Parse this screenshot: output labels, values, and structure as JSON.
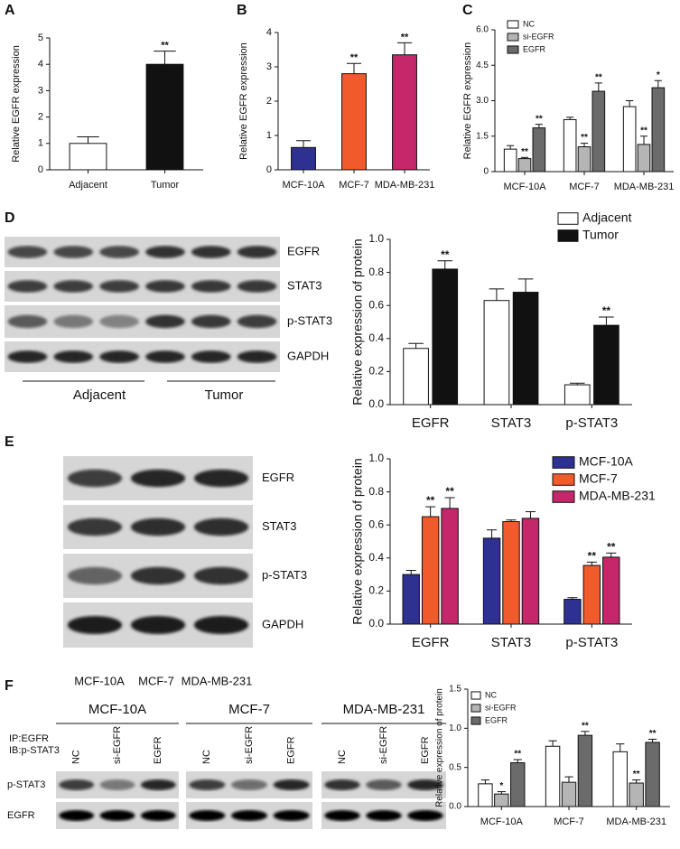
{
  "chart_data": [
    {
      "type": "bar",
      "label": "A",
      "ylabel": "Relative EGFR expression",
      "categories": [
        "Adjacent",
        "Tumor"
      ],
      "values": [
        1.0,
        4.0
      ],
      "errors": [
        0.25,
        0.5
      ],
      "colors": [
        "#ffffff",
        "#111111"
      ],
      "annotations": [
        null,
        "**"
      ],
      "ylim": [
        0,
        5
      ],
      "yticks": [
        0,
        1,
        2,
        3,
        4,
        5
      ]
    },
    {
      "type": "bar",
      "label": "B",
      "ylabel": "Relative EGFR expression",
      "categories": [
        "MCF-10A",
        "MCF-7",
        "MDA-MB-231"
      ],
      "values": [
        0.65,
        2.8,
        3.35
      ],
      "errors": [
        0.2,
        0.3,
        0.35
      ],
      "colors": [
        "#2e3192",
        "#f15a2b",
        "#c4276a"
      ],
      "annotations": [
        null,
        "**",
        "**"
      ],
      "ylim": [
        0,
        4
      ],
      "yticks": [
        0,
        1,
        2,
        3,
        4
      ]
    },
    {
      "type": "bar",
      "label": "C",
      "ylabel": "Relative EGFR expression",
      "categories": [
        "MCF-10A",
        "MCF-7",
        "MDA-MB-231"
      ],
      "series": [
        {
          "name": "NC",
          "color": "#ffffff",
          "values": [
            0.95,
            2.2,
            2.75
          ],
          "errors": [
            0.15,
            0.1,
            0.25
          ],
          "annotations": [
            null,
            null,
            null
          ]
        },
        {
          "name": "si-EGFR",
          "color": "#b5b5b5",
          "values": [
            0.55,
            1.05,
            1.15
          ],
          "errors": [
            0.05,
            0.15,
            0.35
          ],
          "annotations": [
            "**",
            "**",
            "**"
          ]
        },
        {
          "name": "EGFR",
          "color": "#6b6b6b",
          "values": [
            1.85,
            3.4,
            3.55
          ],
          "errors": [
            0.15,
            0.35,
            0.3
          ],
          "annotations": [
            "**",
            "**",
            "*"
          ]
        }
      ],
      "ylim": [
        0,
        6
      ],
      "yticks": [
        0,
        1.5,
        {
          "value": 3,
          "label": "3.0"
        },
        4.5,
        {
          "value": 6,
          "label": "6.0"
        }
      ]
    },
    {
      "type": "bar",
      "label": "D",
      "ylabel": "Relative expression of protein",
      "categories": [
        "EGFR",
        "STAT3",
        "p-STAT3"
      ],
      "series": [
        {
          "name": "Adjacent",
          "color": "#ffffff",
          "values": [
            0.34,
            0.63,
            0.12
          ],
          "errors": [
            0.03,
            0.07,
            0.01
          ],
          "annotations": [
            null,
            null,
            null
          ]
        },
        {
          "name": "Tumor",
          "color": "#111111",
          "values": [
            0.82,
            0.68,
            0.48
          ],
          "errors": [
            0.05,
            0.08,
            0.05
          ],
          "annotations": [
            "**",
            null,
            "**"
          ]
        }
      ],
      "ylim": [
        0,
        1
      ],
      "yticks": [
        {
          "value": 0,
          "label": "0.0"
        },
        0.2,
        0.4,
        0.6,
        0.8,
        {
          "value": 1,
          "label": "1.0"
        }
      ]
    },
    {
      "type": "bar",
      "label": "E",
      "ylabel": "Relative expression of protein",
      "categories": [
        "EGFR",
        "STAT3",
        "p-STAT3"
      ],
      "series": [
        {
          "name": "MCF-10A",
          "color": "#2e3192",
          "values": [
            0.3,
            0.52,
            0.15
          ],
          "errors": [
            0.025,
            0.05,
            0.01
          ],
          "annotations": [
            null,
            null,
            null
          ]
        },
        {
          "name": "MCF-7",
          "color": "#f15a2b",
          "values": [
            0.65,
            0.62,
            0.355
          ],
          "errors": [
            0.06,
            0.01,
            0.02
          ],
          "annotations": [
            "**",
            null,
            "**"
          ]
        },
        {
          "name": "MDA-MB-231",
          "color": "#c4276a",
          "values": [
            0.7,
            0.64,
            0.405
          ],
          "errors": [
            0.065,
            0.04,
            0.025
          ],
          "annotations": [
            "**",
            null,
            "**"
          ]
        }
      ],
      "ylim": [
        0,
        1
      ],
      "yticks": [
        {
          "value": 0,
          "label": "0.0"
        },
        0.2,
        0.4,
        0.6,
        0.8,
        {
          "value": 1,
          "label": "1.0"
        }
      ]
    },
    {
      "type": "bar",
      "label": "F",
      "ylabel": "Relative expression of protein",
      "categories": [
        "MCF-10A",
        "MCF-7",
        "MDA-MB-231"
      ],
      "series": [
        {
          "name": "NC",
          "color": "#ffffff",
          "values": [
            0.29,
            0.77,
            0.7
          ],
          "errors": [
            0.05,
            0.07,
            0.1
          ],
          "annotations": [
            null,
            null,
            null
          ]
        },
        {
          "name": "si-EGFR",
          "color": "#b5b5b5",
          "values": [
            0.16,
            0.31,
            0.3
          ],
          "errors": [
            0.03,
            0.07,
            0.04
          ],
          "annotations": [
            "*",
            null,
            "**"
          ]
        },
        {
          "name": "EGFR",
          "color": "#6b6b6b",
          "values": [
            0.56,
            0.91,
            0.82
          ],
          "errors": [
            0.04,
            0.05,
            0.04
          ],
          "annotations": [
            "**",
            "**",
            "**"
          ]
        }
      ],
      "ylim": [
        0,
        1.5
      ],
      "yticks": [
        {
          "value": 0,
          "label": "0.0"
        },
        0.5,
        {
          "value": 1,
          "label": "1.0"
        },
        1.5
      ]
    }
  ],
  "blots": {
    "D": {
      "rows": [
        "EGFR",
        "STAT3",
        "p-STAT3",
        "GAPDH"
      ],
      "groups": [
        "Adjacent",
        "Tumor"
      ]
    },
    "E": {
      "rows": [
        "EGFR",
        "STAT3",
        "p-STAT3",
        "GAPDH"
      ],
      "lanes": [
        "MCF-10A",
        "MCF-7",
        "MDA-MB-231"
      ]
    },
    "F": {
      "groups": [
        "MCF-10A",
        "MCF-7",
        "MDA-MB-231"
      ],
      "lanes": [
        "NC",
        "si-EGFR",
        "EGFR"
      ],
      "ip": "IP:EGFR",
      "ib": "IB:p-STAT3",
      "rows": [
        "p-STAT3",
        "EGFR"
      ]
    }
  }
}
